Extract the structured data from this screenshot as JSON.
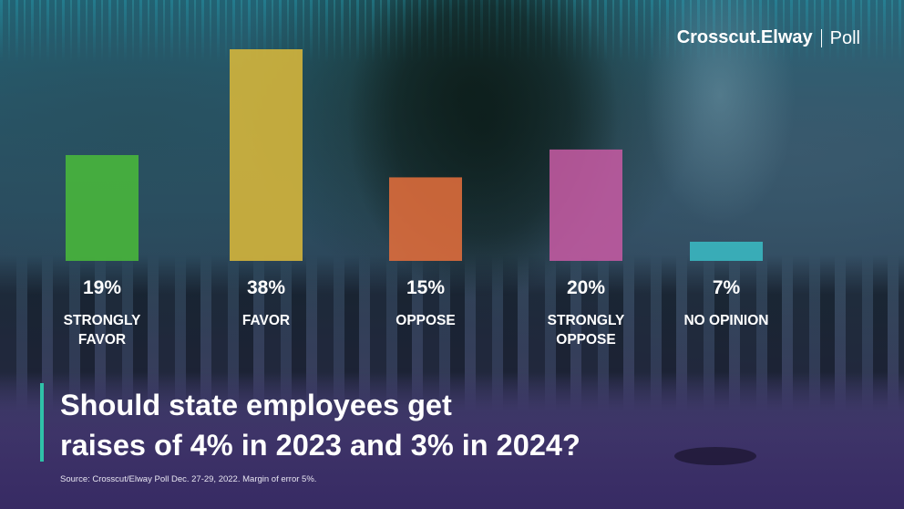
{
  "brand": {
    "name": "Crosscut.Elway",
    "suffix": "Poll"
  },
  "chart_data": {
    "type": "bar",
    "ylim": [
      0,
      40
    ],
    "bars": [
      {
        "value": 19,
        "label": "19%",
        "category": [
          "STRONGLY",
          "FAVOR"
        ],
        "color": "#49b83a"
      },
      {
        "value": 38,
        "label": "38%",
        "category": [
          "FAVOR"
        ],
        "color": "#d8b73a"
      },
      {
        "value": 15,
        "label": "15%",
        "category": [
          "OPPOSE"
        ],
        "color": "#e16d3b"
      },
      {
        "value": 20,
        "label": "20%",
        "category": [
          "STRONGLY",
          "OPPOSE"
        ],
        "color": "#c45aa2"
      },
      {
        "value": 7,
        "label": "7%",
        "category": [
          "NO OPINION"
        ],
        "color": "#3ab9c3",
        "rendered_height": "thin-line"
      }
    ]
  },
  "question": {
    "line1": "Should state employees get",
    "line2": "raises of 4% in 2023 and 3% in 2024?"
  },
  "source": "Source: Crosscut/Elway Poll Dec. 27-29, 2022. Margin of error 5%."
}
